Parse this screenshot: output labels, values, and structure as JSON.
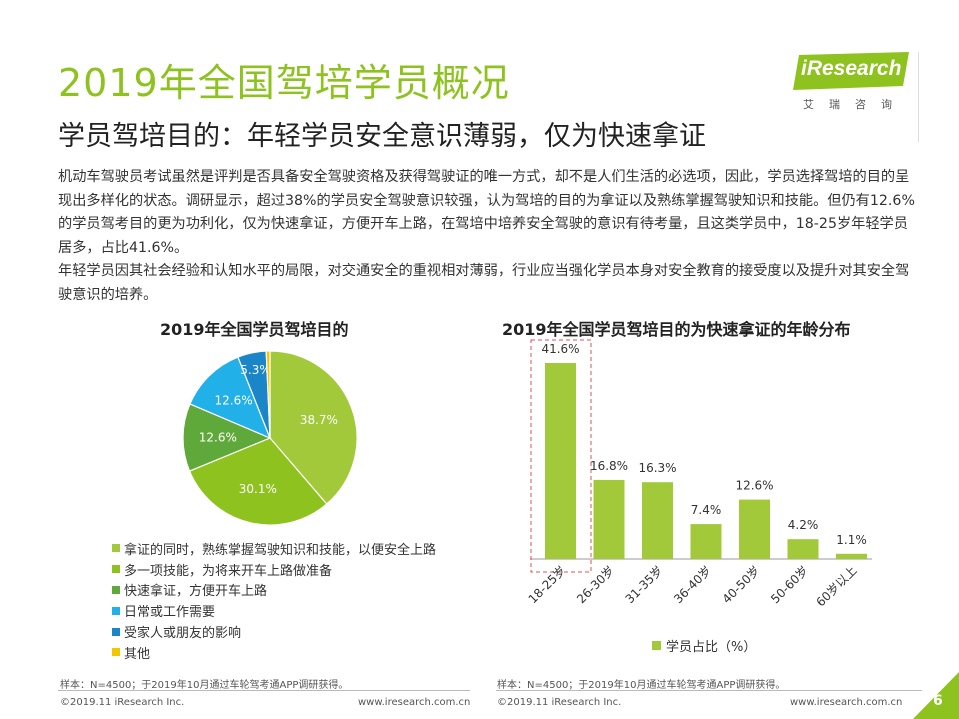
{
  "title": "2019年全国驾培学员概况",
  "subtitle": "学员驾培目的：年轻学员安全意识薄弱，仅为快速拿证",
  "brand": {
    "logo_text": "iResearch",
    "logo_cn": "艾瑞咨询",
    "color": "#8dc21f"
  },
  "body_paragraphs": [
    "机动车驾驶员考试虽然是评判是否具备安全驾驶资格及获得驾驶证的唯一方式，却不是人们生活的必选项，因此，学员选择驾培的目的呈现出多样化的状态。调研显示，超过38%的学员安全驾驶意识较强，认为驾培的目的为拿证以及熟练掌握驾驶知识和技能。但仍有12.6%的学员驾考目的更为功利化，仅为快速拿证，方便开车上路，在驾培中培养安全驾驶的意识有待考量，且这类学员中，18-25岁年轻学员居多，占比41.6%。",
    "年轻学员因其社会经验和认知水平的局限，对交通安全的重视相对薄弱，行业应当强化学员本身对安全教育的接受度以及提升对其安全驾驶意识的培养。"
  ],
  "chart_data": [
    {
      "type": "pie",
      "title": "2019年全国学员驾培目的",
      "slices": [
        {
          "label": "拿证的同时，熟练掌握驾驶知识和技能，以便安全上路",
          "value": 38.7,
          "value_label": "38.7%",
          "color": "#a1c93a"
        },
        {
          "label": "多一项技能，为将来开车上路做准备",
          "value": 30.1,
          "value_label": "30.1%",
          "color": "#8dc21f"
        },
        {
          "label": "快速拿证，方便开车上路",
          "value": 12.6,
          "value_label": "12.6%",
          "color": "#5fa83a"
        },
        {
          "label": "日常或工作需要",
          "value": 12.6,
          "value_label": "12.6%",
          "color": "#22b0e8"
        },
        {
          "label": "受家人或朋友的影响",
          "value": 5.3,
          "value_label": "5.3%",
          "color": "#1a86c8"
        },
        {
          "label": "其他",
          "value": 0.7,
          "value_label": "",
          "color": "#f2c600"
        }
      ]
    },
    {
      "type": "bar",
      "title": "2019年全国学员驾培目的为快速拿证的年龄分布",
      "categories": [
        "18-25岁",
        "26-30岁",
        "31-35岁",
        "36-40岁",
        "40-50岁",
        "50-60岁",
        "60岁以上"
      ],
      "series": [
        {
          "name": "学员占比（%）",
          "values": [
            41.6,
            16.8,
            16.3,
            7.4,
            12.6,
            4.2,
            1.1
          ],
          "labels": [
            "41.6%",
            "16.8%",
            "16.3%",
            "7.4%",
            "12.6%",
            "4.2%",
            "1.1%"
          ],
          "color": "#a1c93a"
        }
      ],
      "highlight_category": "18-25岁",
      "ylim": [
        0,
        45
      ],
      "grid": false,
      "legend": "bottom"
    }
  ],
  "notes": {
    "left": "样本：N=4500；于2019年10月通过车轮驾考通APP调研获得。",
    "right": "样本：N=4500；于2019年10月通过车轮驾考通APP调研获得。"
  },
  "footer": {
    "copyright": "©2019.11 iResearch Inc.",
    "url": "www.iresearch.com.cn",
    "page": "6"
  }
}
